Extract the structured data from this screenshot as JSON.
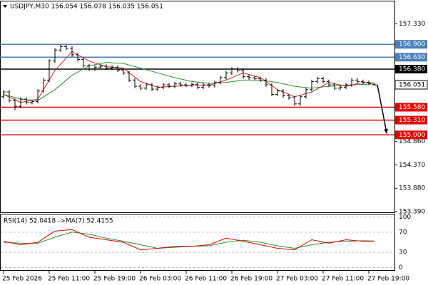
{
  "chart_data": [
    {
      "type": "ohlc",
      "title": "USDJPY,M30 156.054 156.078 156.035 156.051",
      "categories": [
        "25 Feb 2026",
        null,
        null,
        null,
        null,
        null,
        null,
        null,
        "25 Feb 11:00",
        null,
        null,
        null,
        null,
        null,
        null,
        null,
        "25 Feb 19:00",
        null,
        null,
        null,
        null,
        null,
        null,
        null,
        "26 Feb 03:00",
        null,
        null,
        null,
        null,
        null,
        null,
        null,
        "26 Feb 11:00",
        null,
        null,
        null,
        null,
        null,
        null,
        null,
        "26 Feb 19:00",
        null,
        null,
        null,
        null,
        null,
        null,
        null,
        "27 Feb 03:00",
        null,
        null,
        null,
        null,
        null,
        null,
        null,
        "27 Feb 11:00",
        null,
        null,
        null,
        null,
        null,
        null,
        null,
        "27 Feb 19:00",
        null
      ],
      "open": [
        155.8,
        155.9,
        155.72,
        155.6,
        155.75,
        155.68,
        155.7,
        155.92,
        156.15,
        156.55,
        156.78,
        156.85,
        156.82,
        156.68,
        156.58,
        156.45,
        156.38,
        156.42,
        156.44,
        156.4,
        156.42,
        156.36,
        156.3,
        156.15,
        156.02,
        155.98,
        156.05,
        155.96,
        156.0,
        156.05,
        156.02,
        156.07,
        156.05,
        156.04,
        156.06,
        156.0,
        156.05,
        156.03,
        156.1,
        156.2,
        156.3,
        156.38,
        156.35,
        156.22,
        156.2,
        156.18,
        156.15,
        156.05,
        155.85,
        155.92,
        155.82,
        155.78,
        155.65,
        155.8,
        155.95,
        156.12,
        156.18,
        156.12,
        156.05,
        155.98,
        156.0,
        156.05,
        156.15,
        156.12,
        156.1,
        156.054
      ],
      "high": [
        155.94,
        155.94,
        155.76,
        155.79,
        155.79,
        155.74,
        155.96,
        156.19,
        156.59,
        156.82,
        156.89,
        156.89,
        156.86,
        156.72,
        156.62,
        156.49,
        156.46,
        156.48,
        156.48,
        156.46,
        156.46,
        156.4,
        156.34,
        156.19,
        156.06,
        156.09,
        156.09,
        156.04,
        156.09,
        156.09,
        156.11,
        156.11,
        156.09,
        156.1,
        156.1,
        156.09,
        156.09,
        156.14,
        156.24,
        156.34,
        156.42,
        156.42,
        156.39,
        156.26,
        156.24,
        156.22,
        156.19,
        156.09,
        155.96,
        155.96,
        155.86,
        155.82,
        155.84,
        155.99,
        156.16,
        156.22,
        156.22,
        156.16,
        156.09,
        156.04,
        156.09,
        156.19,
        156.19,
        156.16,
        156.14,
        156.078
      ],
      "low": [
        155.76,
        155.68,
        155.52,
        155.56,
        155.64,
        155.64,
        155.66,
        155.88,
        156.11,
        156.51,
        156.74,
        156.78,
        156.64,
        156.54,
        156.41,
        156.34,
        156.34,
        156.38,
        156.36,
        156.36,
        156.32,
        156.26,
        156.11,
        155.98,
        155.94,
        155.94,
        155.92,
        155.92,
        155.96,
        155.98,
        155.98,
        156.01,
        156.0,
        156.0,
        155.96,
        155.96,
        155.99,
        155.99,
        156.06,
        156.16,
        156.26,
        156.31,
        156.18,
        156.16,
        156.14,
        156.11,
        156.01,
        155.81,
        155.81,
        155.78,
        155.74,
        155.61,
        155.61,
        155.76,
        155.91,
        156.08,
        156.08,
        156.01,
        155.94,
        155.94,
        155.96,
        156.01,
        156.08,
        156.06,
        156.04,
        156.035
      ],
      "close": [
        155.9,
        155.72,
        155.6,
        155.75,
        155.68,
        155.7,
        155.92,
        156.15,
        156.55,
        156.78,
        156.85,
        156.82,
        156.68,
        156.58,
        156.45,
        156.38,
        156.42,
        156.44,
        156.4,
        156.42,
        156.36,
        156.3,
        156.15,
        156.02,
        155.98,
        156.05,
        155.96,
        156.0,
        156.05,
        156.02,
        156.07,
        156.05,
        156.04,
        156.06,
        156.0,
        156.05,
        156.03,
        156.1,
        156.2,
        156.3,
        156.38,
        156.35,
        156.22,
        156.2,
        156.18,
        156.15,
        156.05,
        155.85,
        155.92,
        155.82,
        155.78,
        155.65,
        155.8,
        155.95,
        156.12,
        156.18,
        156.12,
        156.05,
        155.98,
        156.0,
        156.05,
        156.15,
        156.12,
        156.1,
        156.08,
        156.051
      ],
      "color": "#000000",
      "overlays": [
        {
          "color": "#2e8b2e",
          "x": [
            0,
            3,
            6,
            9,
            12,
            15,
            18,
            21,
            24,
            27,
            30,
            33,
            36,
            39,
            42,
            45,
            48,
            51,
            54,
            57,
            60,
            63,
            65
          ],
          "values": [
            155.85,
            155.75,
            155.72,
            155.95,
            156.25,
            156.45,
            156.52,
            156.5,
            156.4,
            156.3,
            156.2,
            156.12,
            156.08,
            156.1,
            156.15,
            156.15,
            156.1,
            156.02,
            155.98,
            156.02,
            156.04,
            156.06,
            156.07
          ]
        },
        {
          "color": "#d62020",
          "x": [
            0,
            3,
            6,
            9,
            12,
            15,
            18,
            21,
            24,
            27,
            30,
            33,
            36,
            39,
            42,
            45,
            48,
            51,
            54,
            57,
            60,
            63,
            65
          ],
          "values": [
            155.85,
            155.68,
            155.75,
            156.35,
            156.75,
            156.55,
            156.43,
            156.4,
            156.12,
            156.0,
            156.02,
            156.05,
            156.04,
            156.15,
            156.3,
            156.2,
            155.95,
            155.8,
            155.9,
            156.1,
            156.02,
            156.1,
            156.09
          ]
        }
      ],
      "levels": [
        {
          "value": 156.9,
          "label": "156.900",
          "color": "#4a7ebb"
        },
        {
          "value": 156.63,
          "label": "156.630",
          "color": "#4a7ebb"
        },
        {
          "value": 156.38,
          "label": "156.380",
          "color": "#000000"
        },
        {
          "value": 155.58,
          "label": "155.580",
          "color": "#e00000"
        },
        {
          "value": 155.31,
          "label": "155.310",
          "color": "#e00000"
        },
        {
          "value": 155.0,
          "label": "155.000",
          "color": "#e00000"
        }
      ],
      "current_price": 156.051,
      "ylim": [
        153.375,
        157.8
      ],
      "yticks": [
        {
          "value": 157.33,
          "label": "157.330"
        },
        {
          "value": 154.86,
          "label": "154.860"
        },
        {
          "value": 154.37,
          "label": "154.370"
        },
        {
          "value": 153.88,
          "label": "153.880"
        },
        {
          "value": 153.39,
          "label": "153.390"
        }
      ],
      "grid": false
    },
    {
      "type": "line",
      "title": "RSI(14) 52.0418 ->MA(7) 52.4155",
      "lines": [
        {
          "color": "#2e8b2e",
          "x": [
            0,
            3,
            6,
            9,
            12,
            15,
            18,
            21,
            24,
            27,
            30,
            33,
            36,
            39,
            42,
            45,
            48,
            51,
            54,
            57,
            60,
            63,
            65
          ],
          "values": [
            50,
            48,
            48,
            60,
            70,
            66,
            58,
            52,
            45,
            38,
            40,
            42,
            43,
            50,
            54,
            50,
            43,
            38,
            45,
            50,
            52,
            53,
            52.4155
          ]
        },
        {
          "color": "#e00000",
          "x": [
            0,
            3,
            6,
            9,
            12,
            15,
            18,
            21,
            24,
            27,
            30,
            33,
            36,
            39,
            42,
            45,
            48,
            51,
            54,
            57,
            60,
            63,
            65
          ],
          "values": [
            52,
            45,
            50,
            72,
            75,
            60,
            55,
            50,
            35,
            38,
            42,
            42,
            45,
            58,
            52,
            45,
            38,
            35,
            55,
            48,
            55,
            52,
            52.0418
          ]
        }
      ],
      "ylim": [
        -5,
        105
      ],
      "yticks": [
        100,
        70,
        30,
        0
      ],
      "grid": true
    }
  ]
}
